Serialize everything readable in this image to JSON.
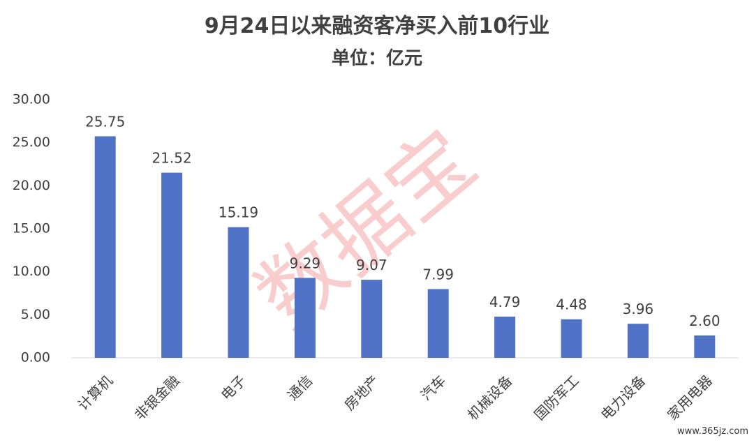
{
  "chart_data": {
    "type": "bar",
    "title": "9月24日以来融资客净买入前10行业",
    "subtitle": "单位：亿元",
    "categories": [
      "计算机",
      "非银金融",
      "电子",
      "通信",
      "房地产",
      "汽车",
      "机械设备",
      "国防军工",
      "电力设备",
      "家用电器"
    ],
    "values": [
      25.75,
      21.52,
      15.19,
      9.29,
      9.07,
      7.99,
      4.79,
      4.48,
      3.96,
      2.6
    ],
    "value_labels": [
      "25.75",
      "21.52",
      "15.19",
      "9.29",
      "9.07",
      "7.99",
      "4.79",
      "4.48",
      "3.96",
      "2.60"
    ],
    "color": "#4f71c6",
    "ylim": [
      0,
      30
    ],
    "yticks": [
      {
        "value": 0,
        "label": "0.00"
      },
      {
        "value": 5,
        "label": "5.00"
      },
      {
        "value": 10,
        "label": "10.00"
      },
      {
        "value": 15,
        "label": "15.00"
      },
      {
        "value": 20,
        "label": "20.00"
      },
      {
        "value": 25,
        "label": "25.00"
      },
      {
        "value": 30,
        "label": "30.00"
      }
    ],
    "grid": false,
    "watermark": "数据宝",
    "source": "www.365jz.com"
  }
}
